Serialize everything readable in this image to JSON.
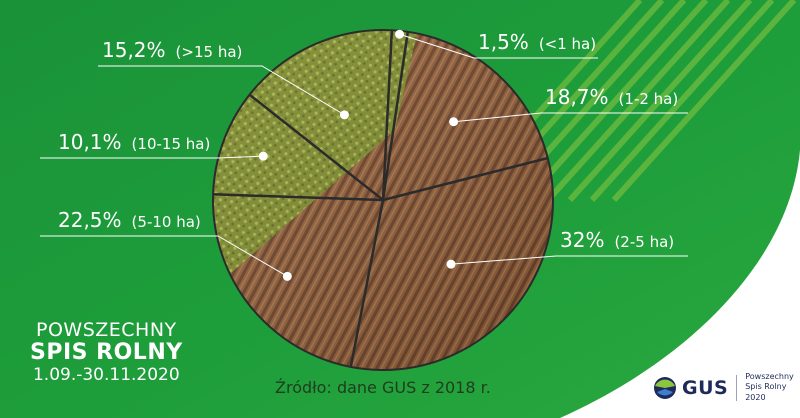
{
  "chart_data": {
    "type": "pie",
    "slices": [
      {
        "label": "<1 ha",
        "value": 1.5,
        "value_label": "1,5%"
      },
      {
        "label": "1-2 ha",
        "value": 18.7,
        "value_label": "18,7%"
      },
      {
        "label": "2-5 ha",
        "value": 32,
        "value_label": "32%"
      },
      {
        "label": "5-10 ha",
        "value": 22.5,
        "value_label": "22,5%"
      },
      {
        "label": "10-15 ha",
        "value": 10.1,
        "value_label": "10,1%"
      },
      {
        "label": ">15 ha",
        "value": 15.2,
        "value_label": "15,2%"
      }
    ]
  },
  "labels": [
    {
      "pct": "1,5%",
      "range": "(<1 ha)"
    },
    {
      "pct": "18,7%",
      "range": "(1-2 ha)"
    },
    {
      "pct": "32%",
      "range": "(2-5 ha)"
    },
    {
      "pct": "22,5%",
      "range": "(5-10 ha)"
    },
    {
      "pct": "10,1%",
      "range": "(10-15 ha)"
    },
    {
      "pct": "15,2%",
      "range": "(>15 ha)"
    }
  ],
  "census": {
    "line1": "POWSZECHNY",
    "line2": "SPIS ROLNY",
    "line3": "1.09.-30.11.2020"
  },
  "source": "Źródło: dane GUS z 2018 r.",
  "logo": {
    "name": "GUS",
    "tagline_1": "Powszechny",
    "tagline_2": "Spis Rolny 2020"
  },
  "colors": {
    "background_green": "#1f9c3a",
    "accent_green": "#8cc63f",
    "soil": "#8a5a36",
    "crop": "#8a9a2a",
    "divider_lines": "#2b2b2b"
  }
}
